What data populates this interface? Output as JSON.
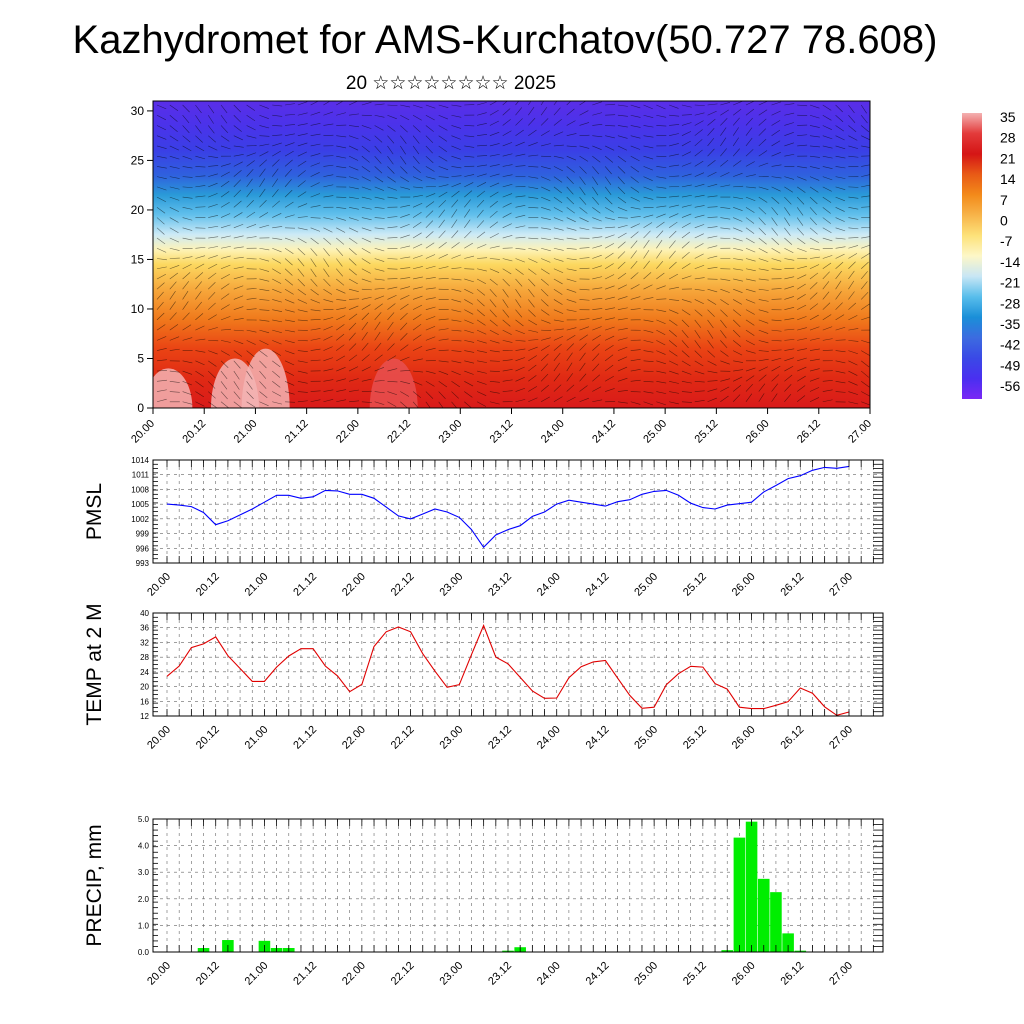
{
  "header": {
    "title": "Kazhydromet for AMS-Kurchatov(50.727 78.608)",
    "subtitle": "20 ☆☆☆☆☆☆☆☆ 2025"
  },
  "chart_data": [
    {
      "type": "heatmap",
      "title": "",
      "xlabel": "",
      "ylabel": "",
      "x_ticks": [
        "20.00",
        "20.12",
        "21.00",
        "21.12",
        "22.00",
        "22.12",
        "23.00",
        "23.12",
        "24.00",
        "24.12",
        "25.00",
        "25.12",
        "26.00",
        "26.12",
        "27.00"
      ],
      "y_ticks": [
        0,
        5,
        10,
        15,
        20,
        25,
        30
      ],
      "ylim": [
        0,
        31
      ],
      "colorbar": {
        "labels": [
          "35",
          "28",
          "21",
          "14",
          "7",
          "0",
          "-7",
          "-14",
          "-21",
          "-28",
          "-35",
          "-42",
          "-49",
          "-56"
        ],
        "colors": [
          "#f4b2b2",
          "#e33b3b",
          "#d51515",
          "#e85a16",
          "#f38a1a",
          "#f7b44a",
          "#fde27a",
          "#fdf7c8",
          "#c8e6f5",
          "#58bdeb",
          "#1a8fd8",
          "#3c6be0",
          "#3a49e6",
          "#4a2ff0",
          "#7a28f5"
        ]
      },
      "profile_layers": [
        {
          "height": 0,
          "color": "#d91a1a"
        },
        {
          "height": 3,
          "color": "#e02a14"
        },
        {
          "height": 6,
          "color": "#ea4414"
        },
        {
          "height": 9,
          "color": "#f07a1c"
        },
        {
          "height": 12,
          "color": "#f6a83c"
        },
        {
          "height": 14.5,
          "color": "#fcd860"
        },
        {
          "height": 16,
          "color": "#fdf3b8"
        },
        {
          "height": 17.5,
          "color": "#cdeaf6"
        },
        {
          "height": 19.5,
          "color": "#62c0ec"
        },
        {
          "height": 21.5,
          "color": "#2a9ad8"
        },
        {
          "height": 23.5,
          "color": "#2f61de"
        },
        {
          "height": 26,
          "color": "#3a3fe6"
        },
        {
          "height": 28.5,
          "color": "#4a33ea"
        },
        {
          "height": 31,
          "color": "#5a2ee8"
        }
      ],
      "warm_cores": [
        {
          "x": 0.3,
          "h": 4,
          "color": "#f3b4b4"
        },
        {
          "x": 1.6,
          "h": 5,
          "color": "#f3b4b4"
        },
        {
          "x": 2.2,
          "h": 6,
          "color": "#f3b4b4"
        },
        {
          "x": 4.7,
          "h": 5,
          "color": "#e85050"
        }
      ]
    },
    {
      "type": "line",
      "ylabel": "PMSL",
      "ylim": [
        993,
        1014
      ],
      "y_ticks": [
        993,
        996,
        999,
        1002,
        1005,
        1008,
        1011,
        1014
      ],
      "x_ticks": [
        "20.00",
        "20.12",
        "21.00",
        "21.12",
        "22.00",
        "22.12",
        "23.00",
        "23.12",
        "24.00",
        "24.12",
        "25.00",
        "25.12",
        "26.00",
        "26.12",
        "27.00"
      ],
      "color": "#0000ff",
      "step_hours": 3,
      "values": [
        1005,
        1004.8,
        1004.5,
        1003.3,
        1000.8,
        1001.6,
        1002.8,
        1004,
        1005.4,
        1006.8,
        1006.8,
        1006.2,
        1006.5,
        1007.8,
        1007.7,
        1007,
        1007,
        1006.2,
        1004.4,
        1002.6,
        1002,
        1003,
        1004,
        1003.4,
        1002.3,
        999.8,
        996.2,
        998.7,
        999.8,
        1000.6,
        1002.5,
        1003.4,
        1005,
        1005.8,
        1005.4,
        1005,
        1004.6,
        1005.5,
        1005.9,
        1007,
        1007.6,
        1007.8,
        1006.8,
        1005.2,
        1004.3,
        1004,
        1004.8,
        1005.1,
        1005.4,
        1007.5,
        1008.8,
        1010.2,
        1010.8,
        1011.9,
        1012.5,
        1012.3,
        1012.7
      ]
    },
    {
      "type": "line",
      "ylabel": "TEMP at 2 M",
      "ylim": [
        12,
        40
      ],
      "y_ticks": [
        12,
        16,
        20,
        24,
        28,
        32,
        36,
        40
      ],
      "x_ticks": [
        "20.00",
        "20.12",
        "21.00",
        "21.12",
        "22.00",
        "22.12",
        "23.00",
        "23.12",
        "24.00",
        "24.12",
        "25.00",
        "25.12",
        "26.00",
        "26.12",
        "27.00"
      ],
      "color": "#e00000",
      "step_hours": 3,
      "values": [
        22.8,
        25.6,
        30.6,
        31.6,
        33.5,
        28.4,
        24.9,
        21.4,
        21.4,
        25.3,
        28.3,
        30.3,
        30.3,
        25.6,
        22.9,
        18.6,
        20.6,
        30.9,
        34.9,
        36.2,
        34.9,
        28.9,
        24.2,
        19.8,
        20.5,
        28.7,
        36.6,
        28,
        26.2,
        22.5,
        18.8,
        16.8,
        16.9,
        22.4,
        25.4,
        26.7,
        27.1,
        22.3,
        17.6,
        14.1,
        14.4,
        20.5,
        23.5,
        25.5,
        25.3,
        20.8,
        19.3,
        14.4,
        14,
        14,
        14.9,
        15.9,
        19.6,
        18.2,
        14.5,
        12.2,
        13.1
      ]
    },
    {
      "type": "bar",
      "ylabel": "PRECIP, mm",
      "ylim": [
        0,
        5
      ],
      "y_ticks": [
        "0.0",
        "1.0",
        "2.0",
        "3.0",
        "4.0",
        "5.0"
      ],
      "x_ticks": [
        "20.00",
        "20.12",
        "21.00",
        "21.12",
        "22.00",
        "22.12",
        "23.00",
        "23.12",
        "24.00",
        "24.12",
        "25.00",
        "25.12",
        "26.00",
        "26.12",
        "27.00"
      ],
      "color": "#00ee00",
      "step_hours": 3,
      "values": [
        0,
        0,
        0,
        0.15,
        0,
        0.45,
        0,
        0,
        0.42,
        0.15,
        0.15,
        0,
        0,
        0,
        0,
        0,
        0,
        0,
        0,
        0,
        0,
        0,
        0,
        0,
        0,
        0,
        0,
        0,
        0.05,
        0.18,
        0,
        0,
        0,
        0,
        0,
        0,
        0,
        0,
        0,
        0,
        0,
        0,
        0,
        0,
        0,
        0,
        0.07,
        4.3,
        4.9,
        2.75,
        2.25,
        0.7,
        0.05,
        0,
        0,
        0
      ]
    }
  ]
}
